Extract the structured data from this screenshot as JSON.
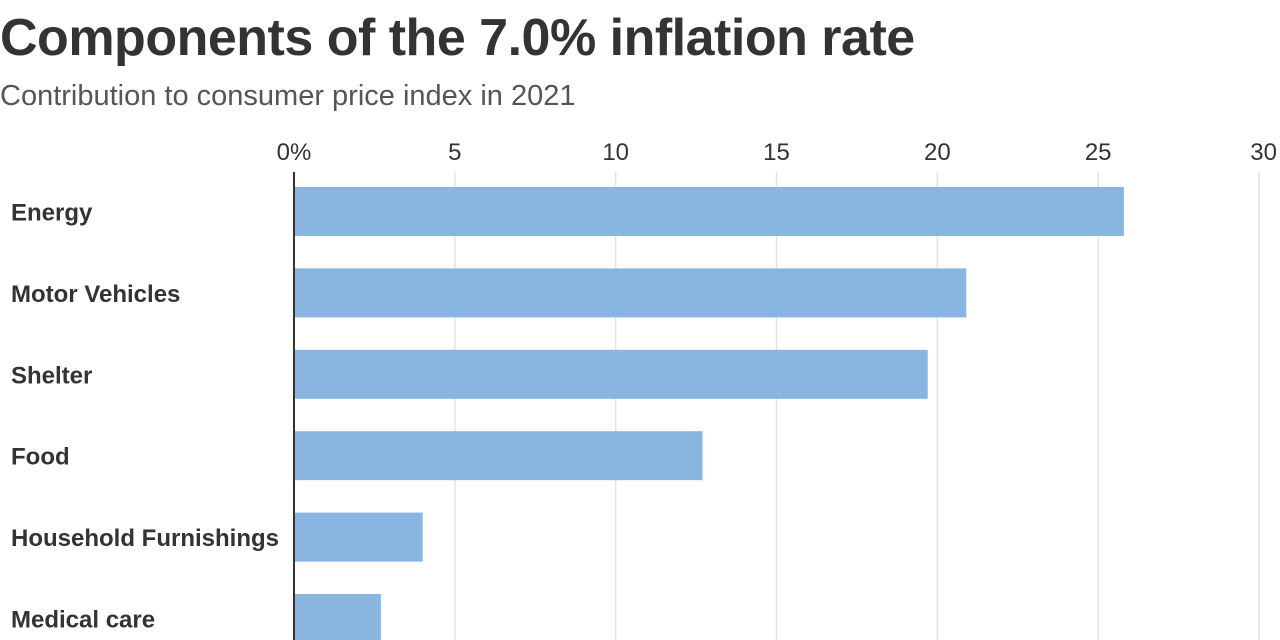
{
  "chart_data": {
    "type": "bar",
    "orientation": "horizontal",
    "title": "Components of the 7.0% inflation rate",
    "subtitle": "Contribution to consumer price index in 2021",
    "categories": [
      "Energy",
      "Motor Vehicles",
      "Shelter",
      "Food",
      "Household Furnishings",
      "Medical care"
    ],
    "values": [
      25.8,
      20.9,
      19.7,
      12.7,
      4.0,
      2.7
    ],
    "xlim": [
      0,
      30
    ],
    "xticks": [
      0,
      5,
      10,
      15,
      20,
      25,
      30
    ],
    "xtick_labels": [
      "0%",
      "5",
      "10",
      "15",
      "20",
      "25",
      "30"
    ],
    "grid": true,
    "bar_color": "#89b5e1",
    "gridline_color": "#e3e3e3"
  }
}
